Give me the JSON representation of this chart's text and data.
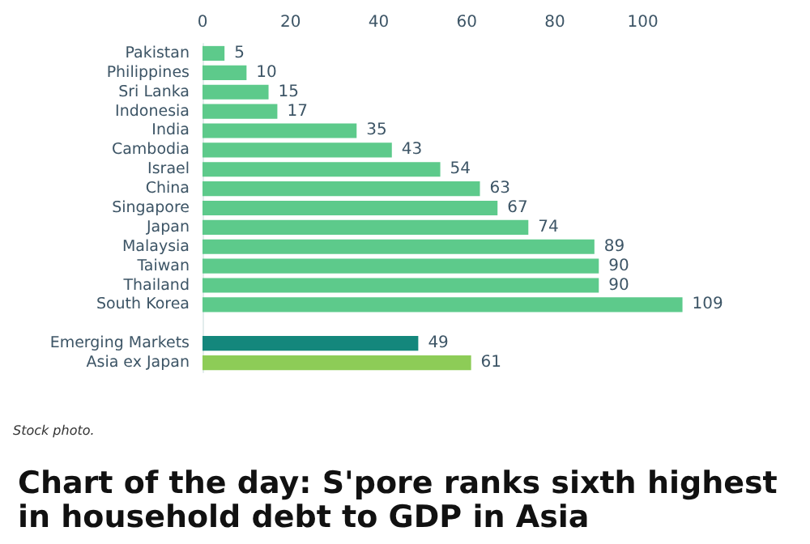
{
  "chart_data": {
    "type": "bar",
    "orientation": "horizontal",
    "title": "Chart of the day: S'pore ranks sixth highest in household debt to GDP in Asia",
    "annotations": [
      "Stock photo."
    ],
    "categories": [
      "Pakistan",
      "Philippines",
      "Sri Lanka",
      "Indonesia",
      "India",
      "Cambodia",
      "Israel",
      "China",
      "Singapore",
      "Japan",
      "Malaysia",
      "Taiwan",
      "Thailand",
      "South Korea",
      null,
      "Emerging Markets",
      "Asia ex Japan"
    ],
    "values": [
      5,
      10,
      15,
      17,
      35,
      43,
      54,
      63,
      67,
      74,
      89,
      90,
      90,
      109,
      null,
      49,
      61
    ],
    "colors": [
      "#5dca8b",
      "#5dca8b",
      "#5dca8b",
      "#5dca8b",
      "#5dca8b",
      "#5dca8b",
      "#5dca8b",
      "#5dca8b",
      "#5dca8b",
      "#5dca8b",
      "#5dca8b",
      "#5dca8b",
      "#5dca8b",
      "#5dca8b",
      null,
      "#14877c",
      "#8dcc57"
    ],
    "xlim": [
      0,
      110
    ],
    "xticks": [
      0,
      20,
      40,
      60,
      80,
      100
    ],
    "data_labels": true
  }
}
